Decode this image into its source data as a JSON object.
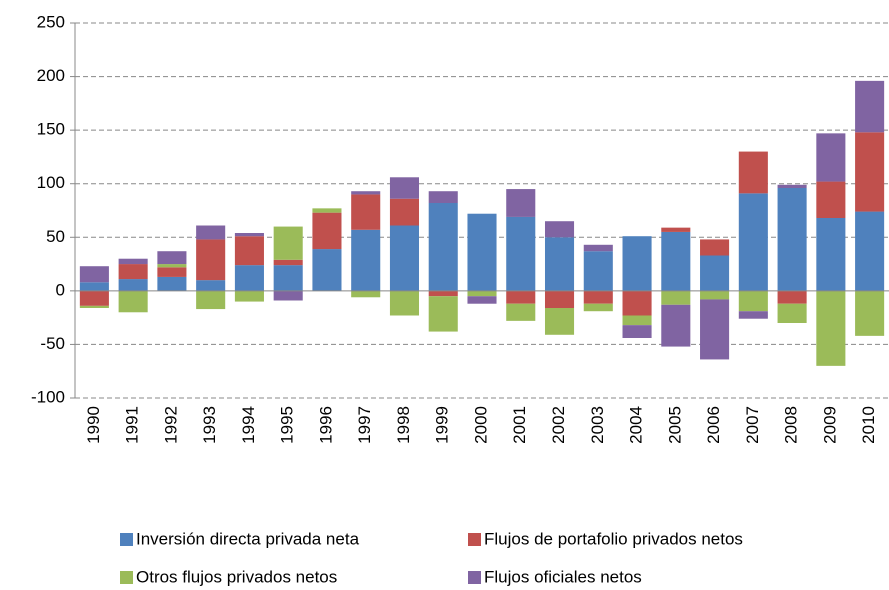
{
  "chart_data": {
    "type": "stacked-bar",
    "categories": [
      "1990",
      "1991",
      "1992",
      "1993",
      "1994",
      "1995",
      "1996",
      "1997",
      "1998",
      "1999",
      "2000",
      "2001",
      "2002",
      "2003",
      "2004",
      "2005",
      "2006",
      "2007",
      "2008",
      "2009",
      "2010"
    ],
    "series": [
      {
        "name": "Inversión directa privada neta",
        "color": "#4f81bd",
        "values": [
          8,
          11,
          13,
          10,
          24,
          24,
          39,
          57,
          61,
          82,
          72,
          69,
          50,
          37,
          51,
          55,
          33,
          91,
          96,
          68,
          74
        ]
      },
      {
        "name": "Flujos de portafolio privados netos",
        "color": "#c0504d",
        "values": [
          -14,
          14,
          9,
          38,
          27,
          5,
          34,
          33,
          25,
          -5,
          0,
          -12,
          -16,
          -12,
          -23,
          4,
          15,
          39,
          -12,
          34,
          74
        ]
      },
      {
        "name": "Otros flujos privados netos",
        "color": "#9bbb59",
        "values": [
          -2,
          -20,
          3,
          -17,
          -10,
          31,
          4,
          -6,
          -23,
          -33,
          -5,
          -16,
          -25,
          -7,
          -9,
          -13,
          -8,
          -19,
          -18,
          -70,
          -42
        ]
      },
      {
        "name": "Flujos oficiales netos",
        "color": "#8064a2",
        "values": [
          15,
          5,
          12,
          13,
          3,
          -9,
          0,
          3,
          20,
          11,
          -7,
          26,
          15,
          6,
          -12,
          -39,
          -56,
          -7,
          3,
          45,
          48
        ]
      }
    ],
    "ylim": [
      -100,
      250
    ],
    "yticks": [
      -100,
      -50,
      0,
      50,
      100,
      150,
      200,
      250
    ],
    "grid": true
  }
}
